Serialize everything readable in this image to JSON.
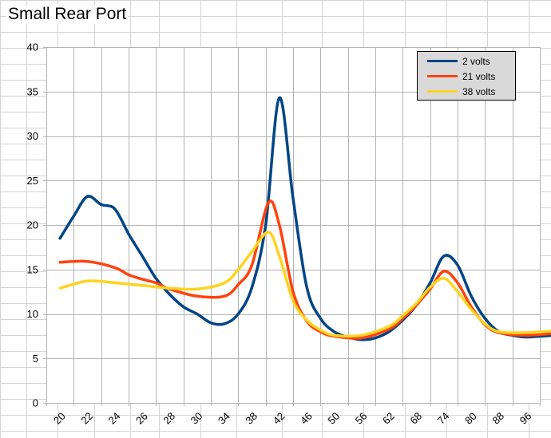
{
  "chart_data": {
    "type": "line",
    "title": "Small Rear Port",
    "xlabel": "",
    "ylabel": "",
    "ylim": [
      0,
      40
    ],
    "yticks": [
      0,
      5,
      10,
      15,
      20,
      25,
      30,
      35,
      40
    ],
    "x_tick_labels": [
      "20",
      "22",
      "24",
      "26",
      "28",
      "30",
      "34",
      "38",
      "42",
      "46",
      "50",
      "56",
      "62",
      "68",
      "74",
      "80",
      "88",
      "96"
    ],
    "grid": true,
    "legend_position": "top-right",
    "series": [
      {
        "name": "2 volts",
        "color": "#004586",
        "points": [
          [
            0,
            18.5
          ],
          [
            0.5,
            21
          ],
          [
            1,
            23.2
          ],
          [
            1.5,
            22.3
          ],
          [
            2,
            21.8
          ],
          [
            2.5,
            19
          ],
          [
            3,
            16.5
          ],
          [
            3.5,
            14
          ],
          [
            4,
            12.2
          ],
          [
            4.5,
            10.8
          ],
          [
            5,
            10
          ],
          [
            5.5,
            9
          ],
          [
            6,
            8.9
          ],
          [
            6.5,
            10
          ],
          [
            7,
            13
          ],
          [
            7.5,
            20
          ],
          [
            8,
            34.3
          ],
          [
            8.5,
            23
          ],
          [
            9,
            13
          ],
          [
            9.5,
            9.5
          ],
          [
            10,
            8
          ],
          [
            10.5,
            7.4
          ],
          [
            11,
            7.1
          ],
          [
            11.5,
            7.3
          ],
          [
            12,
            8
          ],
          [
            12.5,
            9.3
          ],
          [
            13,
            11
          ],
          [
            13.5,
            13.5
          ],
          [
            14,
            16.5
          ],
          [
            14.5,
            15.5
          ],
          [
            15,
            12
          ],
          [
            15.5,
            9.5
          ],
          [
            16,
            8
          ],
          [
            16.5,
            7.6
          ],
          [
            17,
            7.4
          ],
          [
            18,
            7.6
          ]
        ]
      },
      {
        "name": "21 volts",
        "color": "#ff420e",
        "points": [
          [
            0,
            15.8
          ],
          [
            1,
            15.9
          ],
          [
            2,
            15.2
          ],
          [
            2.5,
            14.4
          ],
          [
            3,
            13.9
          ],
          [
            3.5,
            13.5
          ],
          [
            4,
            12.8
          ],
          [
            5,
            12
          ],
          [
            6,
            12
          ],
          [
            6.5,
            13.3
          ],
          [
            7,
            15.5
          ],
          [
            7.6,
            22.5
          ],
          [
            8,
            20
          ],
          [
            8.5,
            12.5
          ],
          [
            9,
            9.2
          ],
          [
            9.5,
            8
          ],
          [
            10,
            7.5
          ],
          [
            11,
            7.3
          ],
          [
            12,
            8.3
          ],
          [
            12.5,
            9.5
          ],
          [
            13,
            11
          ],
          [
            13.5,
            12.8
          ],
          [
            14,
            14.8
          ],
          [
            14.5,
            13.5
          ],
          [
            15,
            10.8
          ],
          [
            15.5,
            8.8
          ],
          [
            16,
            7.9
          ],
          [
            17,
            7.6
          ],
          [
            18,
            7.8
          ]
        ]
      },
      {
        "name": "38 volts",
        "color": "#ffd320",
        "points": [
          [
            0,
            12.9
          ],
          [
            1,
            13.7
          ],
          [
            2,
            13.5
          ],
          [
            3,
            13.2
          ],
          [
            4,
            12.9
          ],
          [
            5,
            12.8
          ],
          [
            6,
            13.5
          ],
          [
            6.5,
            15
          ],
          [
            7,
            17
          ],
          [
            7.6,
            19.2
          ],
          [
            8,
            16.5
          ],
          [
            8.5,
            11.5
          ],
          [
            9,
            9.3
          ],
          [
            9.5,
            8.2
          ],
          [
            10,
            7.6
          ],
          [
            11,
            7.6
          ],
          [
            12,
            8.6
          ],
          [
            12.5,
            9.8
          ],
          [
            13,
            11.2
          ],
          [
            13.5,
            13
          ],
          [
            14,
            14
          ],
          [
            14.5,
            12.5
          ],
          [
            15,
            10.5
          ],
          [
            15.5,
            8.9
          ],
          [
            16,
            8
          ],
          [
            17,
            7.9
          ],
          [
            18,
            8.1
          ]
        ]
      }
    ]
  }
}
